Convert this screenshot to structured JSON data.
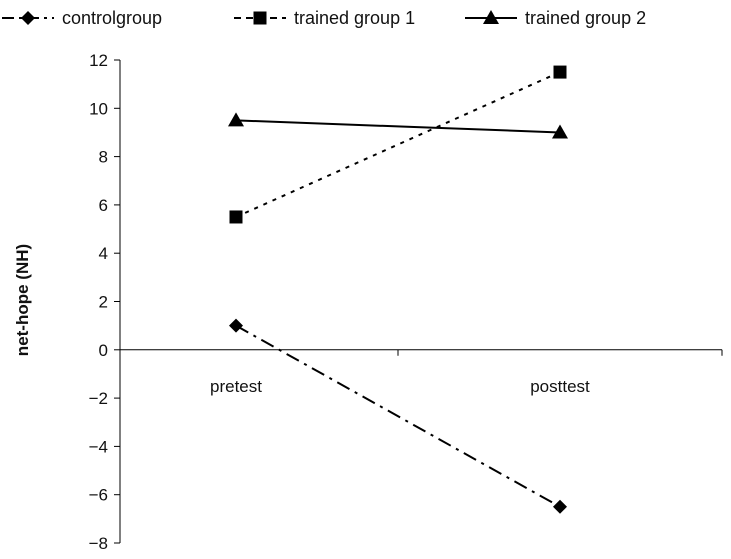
{
  "chart_data": {
    "type": "line",
    "title": "",
    "xlabel": "",
    "ylabel": "net-hope (NH)",
    "categories": [
      "pretest",
      "posttest"
    ],
    "ylim": [
      -8,
      12
    ],
    "yticks": [
      12,
      10,
      8,
      6,
      4,
      2,
      0,
      -2,
      -4,
      -6,
      -8
    ],
    "ytick_labels": [
      "12",
      "10",
      "8",
      "6",
      "4",
      "2",
      "0",
      "−2",
      "−4",
      "−6",
      "−8"
    ],
    "grid": false,
    "legend_position": "top",
    "series": [
      {
        "name": "controlgroup",
        "values": [
          1,
          -6.5
        ],
        "marker": "diamond",
        "line_style": "dash-dot",
        "color": "#000000"
      },
      {
        "name": "trained group 1",
        "values": [
          5.5,
          11.5
        ],
        "marker": "square",
        "line_style": "dotted",
        "color": "#000000"
      },
      {
        "name": "trained group 2",
        "values": [
          9.5,
          9
        ],
        "marker": "triangle",
        "line_style": "solid",
        "color": "#000000"
      }
    ]
  }
}
